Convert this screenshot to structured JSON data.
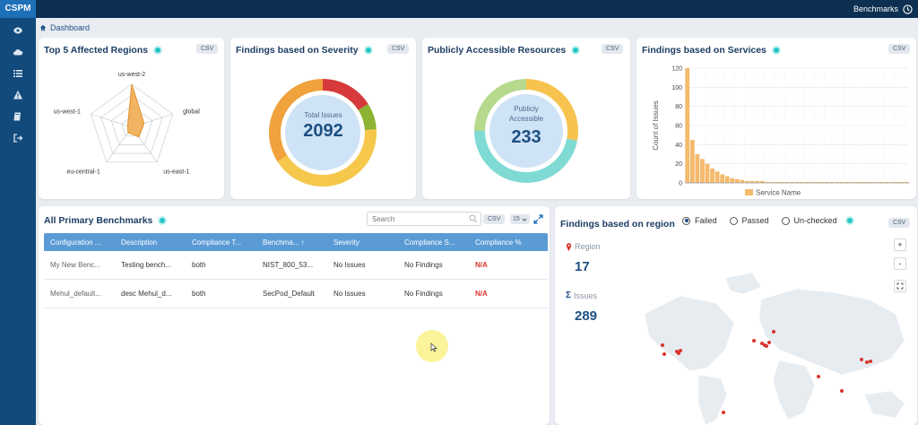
{
  "brand": "CSPM",
  "topbar": {
    "link": "Benchmarks"
  },
  "breadcrumb": {
    "label": "Dashboard"
  },
  "sidebar": {
    "icons": [
      "eye-icon",
      "cloud-icon",
      "list-icon",
      "warning-icon",
      "book-icon",
      "logout-icon"
    ]
  },
  "csv_label": "CSV",
  "regions_card": {
    "title": "Top 5 Affected Regions",
    "axes": [
      "us-west-2",
      "global",
      "us-east-1",
      "eu-central-1",
      "us-west-1"
    ]
  },
  "severity_card": {
    "title": "Findings based on Severity",
    "center_label": "Total Issues",
    "center_value": "2092",
    "colors": [
      "#d63a3a",
      "#8cb332",
      "#f5c84c",
      "#f0a23c"
    ]
  },
  "public_card": {
    "title": "Publicly Accessible Resources",
    "center_label_1": "Publicly",
    "center_label_2": "Accessible",
    "center_value": "233",
    "colors": [
      "#f6c34e",
      "#7fdad4",
      "#b6d98d"
    ]
  },
  "services_card": {
    "title": "Findings based on Services",
    "ylabel": "Count of Issues",
    "legend": "Service Name"
  },
  "chart_data": [
    {
      "type": "radar",
      "title": "Top 5 Affected Regions",
      "categories": [
        "us-west-2",
        "global",
        "us-east-1",
        "eu-central-1",
        "us-west-1"
      ],
      "values": [
        100,
        30,
        28,
        15,
        10
      ],
      "ylim": [
        0,
        100
      ]
    },
    {
      "type": "pie",
      "title": "Findings based on Severity",
      "labels": [
        "",
        "",
        "",
        ""
      ],
      "values": [
        16,
        8,
        42,
        34
      ]
    },
    {
      "type": "pie",
      "title": "Publicly Accessible Resources",
      "labels": [
        "",
        "",
        ""
      ],
      "values": [
        28,
        47,
        25
      ]
    },
    {
      "type": "bar",
      "title": "Findings based on Services",
      "ylabel": "Count of Issues",
      "xlabel": "Service Name",
      "ylim": [
        0,
        120
      ],
      "yticks": [
        "0",
        "20",
        "40",
        "60",
        "80",
        "100",
        "120"
      ],
      "values": [
        120,
        45,
        30,
        25,
        20,
        15,
        12,
        9,
        7,
        5,
        4,
        3,
        2,
        2,
        2,
        2,
        1,
        1,
        1,
        1,
        1,
        1,
        1,
        1,
        1,
        1,
        1,
        1,
        1,
        1,
        1,
        1,
        1,
        1,
        1,
        1,
        1,
        1,
        1,
        1,
        1,
        1,
        1,
        1,
        1
      ]
    }
  ],
  "benchmarks": {
    "title": "All Primary Benchmarks",
    "search_placeholder": "Search",
    "page_size": "15",
    "columns": [
      "Configuration ...",
      "Description",
      "Compliance T...",
      "Benchma... ↑",
      "Severity",
      "Compliance S...",
      "Compliance %"
    ],
    "rows": [
      [
        "My New Benc...",
        "Testing bench...",
        "both",
        "NIST_800_53...",
        "No Issues",
        "No Findings",
        "N/A"
      ],
      [
        "Mehul_default...",
        "desc Mehul_d...",
        "both",
        "SecPod_Default",
        "No Issues",
        "No Findings",
        "N/A"
      ]
    ]
  },
  "region_map": {
    "title": "Findings based on region",
    "filters": [
      "Failed",
      "Passed",
      "Un-checked"
    ],
    "selected": "Failed",
    "region_label": "Region",
    "region_value": "17",
    "issues_label": "Issues",
    "issues_value": "289",
    "zoom_in": "+",
    "zoom_out": "-"
  }
}
